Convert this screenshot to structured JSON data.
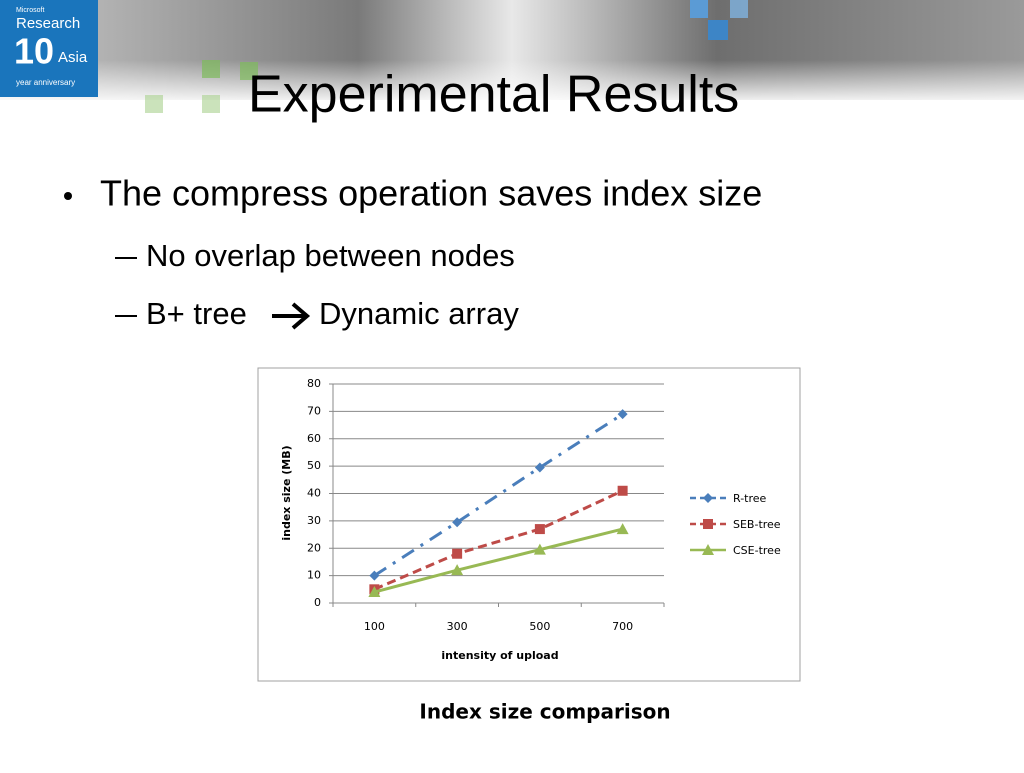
{
  "header": {
    "logo": {
      "brand": "Microsoft",
      "name": "Research",
      "number": "10",
      "region": "Asia",
      "tagline": "year anniversary"
    }
  },
  "slide": {
    "title": "Experimental Results",
    "bullet": "The compress operation saves index size",
    "sub_bullets": [
      {
        "text": "No overlap between nodes"
      },
      {
        "before_arrow": "B+ tree",
        "after_arrow": "Dynamic array"
      }
    ],
    "caption": "Index size comparison"
  },
  "chart_data": {
    "type": "line",
    "xlabel": "intensity of upload",
    "ylabel": "index size (MB)",
    "categories": [
      100,
      300,
      500,
      700
    ],
    "series": [
      {
        "name": "R-tree",
        "color": "#4a7ebb",
        "dash": "dash-dot",
        "marker": "diamond",
        "values": [
          10,
          29.5,
          49.5,
          69
        ]
      },
      {
        "name": "SEB-tree",
        "color": "#be4b48",
        "dash": "dash",
        "marker": "square",
        "values": [
          5,
          18,
          27,
          41
        ]
      },
      {
        "name": "CSE-tree",
        "color": "#98b954",
        "dash": "solid",
        "marker": "triangle",
        "values": [
          4,
          12,
          19.5,
          27
        ]
      }
    ],
    "ylim": [
      0,
      80
    ],
    "yticks": [
      0,
      10,
      20,
      30,
      40,
      50,
      60,
      70,
      80
    ],
    "grid": true,
    "legend": "right"
  }
}
